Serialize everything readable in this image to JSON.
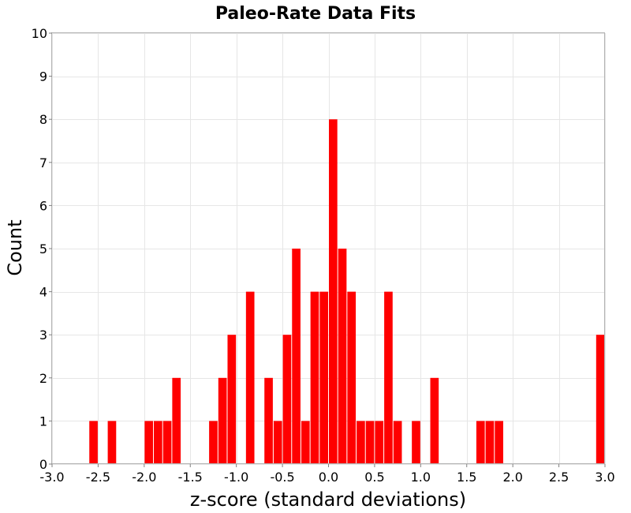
{
  "chart_data": {
    "type": "bar",
    "title": "Paleo-Rate Data Fits",
    "xlabel": "z-score (standard deviations)",
    "ylabel": "Count",
    "xlim": [
      -3.0,
      3.0
    ],
    "ylim": [
      0,
      10
    ],
    "bin_width": 0.1,
    "x_ticks": [
      "-3.0",
      "-2.5",
      "-2.0",
      "-1.5",
      "-1.0",
      "-0.5",
      "0.0",
      "0.5",
      "1.0",
      "1.5",
      "2.0",
      "2.5",
      "3.0"
    ],
    "y_ticks": [
      "0",
      "1",
      "2",
      "3",
      "4",
      "5",
      "6",
      "7",
      "8",
      "9",
      "10"
    ],
    "grid": true,
    "color": "#ff0000",
    "bins": [
      {
        "x": -2.55,
        "count": 1
      },
      {
        "x": -2.35,
        "count": 1
      },
      {
        "x": -1.95,
        "count": 1
      },
      {
        "x": -1.85,
        "count": 1
      },
      {
        "x": -1.75,
        "count": 1
      },
      {
        "x": -1.65,
        "count": 2
      },
      {
        "x": -1.25,
        "count": 1
      },
      {
        "x": -1.15,
        "count": 2
      },
      {
        "x": -1.05,
        "count": 3
      },
      {
        "x": -0.85,
        "count": 4
      },
      {
        "x": -0.65,
        "count": 2
      },
      {
        "x": -0.55,
        "count": 1
      },
      {
        "x": -0.45,
        "count": 3
      },
      {
        "x": -0.35,
        "count": 5
      },
      {
        "x": -0.25,
        "count": 1
      },
      {
        "x": -0.15,
        "count": 4
      },
      {
        "x": -0.05,
        "count": 4
      },
      {
        "x": 0.05,
        "count": 8
      },
      {
        "x": 0.15,
        "count": 5
      },
      {
        "x": 0.25,
        "count": 4
      },
      {
        "x": 0.35,
        "count": 1
      },
      {
        "x": 0.45,
        "count": 1
      },
      {
        "x": 0.55,
        "count": 1
      },
      {
        "x": 0.65,
        "count": 4
      },
      {
        "x": 0.75,
        "count": 1
      },
      {
        "x": 0.95,
        "count": 1
      },
      {
        "x": 1.15,
        "count": 2
      },
      {
        "x": 1.65,
        "count": 1
      },
      {
        "x": 1.75,
        "count": 1
      },
      {
        "x": 1.85,
        "count": 1
      },
      {
        "x": 2.95,
        "count": 3
      }
    ]
  }
}
